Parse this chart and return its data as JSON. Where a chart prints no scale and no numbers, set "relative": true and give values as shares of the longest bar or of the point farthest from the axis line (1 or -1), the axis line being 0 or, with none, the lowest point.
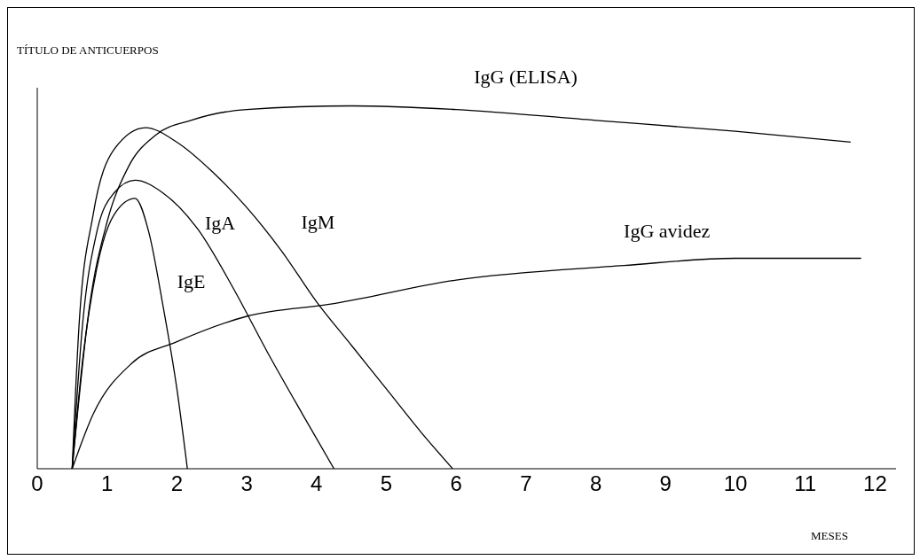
{
  "chart_data": {
    "type": "line",
    "ylabel": "TÍTULO DE ANTICUERPOS",
    "xlabel": "MESES",
    "relative": true,
    "xlim": [
      0,
      12.3
    ],
    "xticks": [
      0,
      1,
      2,
      3,
      4,
      5,
      6,
      7,
      8,
      9,
      10,
      11,
      12
    ],
    "grid": false,
    "legend": false,
    "marker": "none",
    "line_style": "solid",
    "series": [
      {
        "name": "IgG (ELISA)",
        "color": "#000000",
        "x": [
          0.5,
          0.75,
          1.0,
          1.3,
          1.7,
          2.2,
          3,
          4.5,
          6,
          8,
          10,
          11.65
        ],
        "values": [
          0,
          0.45,
          0.68,
          0.83,
          0.92,
          0.96,
          0.99,
          1,
          0.99,
          0.96,
          0.93,
          0.9
        ]
      },
      {
        "name": "IgM",
        "color": "#000000",
        "x": [
          0.5,
          0.6,
          0.8,
          1.1,
          1.55,
          2,
          2.5,
          3,
          3.5,
          4,
          4.5,
          5,
          5.5,
          5.95
        ],
        "values": [
          0,
          0.4,
          0.7,
          0.88,
          0.94,
          0.9,
          0.82,
          0.72,
          0.6,
          0.46,
          0.34,
          0.22,
          0.1,
          0
        ]
      },
      {
        "name": "IgA",
        "color": "#000000",
        "x": [
          0.5,
          0.65,
          0.85,
          1.1,
          1.4,
          1.8,
          2.3,
          2.8,
          3.3,
          3.8,
          4.25
        ],
        "values": [
          0,
          0.4,
          0.65,
          0.76,
          0.795,
          0.76,
          0.66,
          0.5,
          0.32,
          0.15,
          0
        ]
      },
      {
        "name": "IgE",
        "color": "#000000",
        "x": [
          0.5,
          0.65,
          0.85,
          1.1,
          1.4,
          1.6,
          1.8,
          2.0,
          2.15
        ],
        "values": [
          0,
          0.3,
          0.55,
          0.7,
          0.745,
          0.65,
          0.45,
          0.22,
          0
        ]
      },
      {
        "name": "IgG avidez",
        "color": "#000000",
        "x": [
          0.5,
          0.8,
          1.35,
          2,
          3,
          4.25,
          6,
          8.4,
          10,
          11.8
        ],
        "values": [
          0,
          0.15,
          0.29,
          0.35,
          0.42,
          0.455,
          0.52,
          0.56,
          0.58,
          0.58
        ]
      }
    ]
  }
}
